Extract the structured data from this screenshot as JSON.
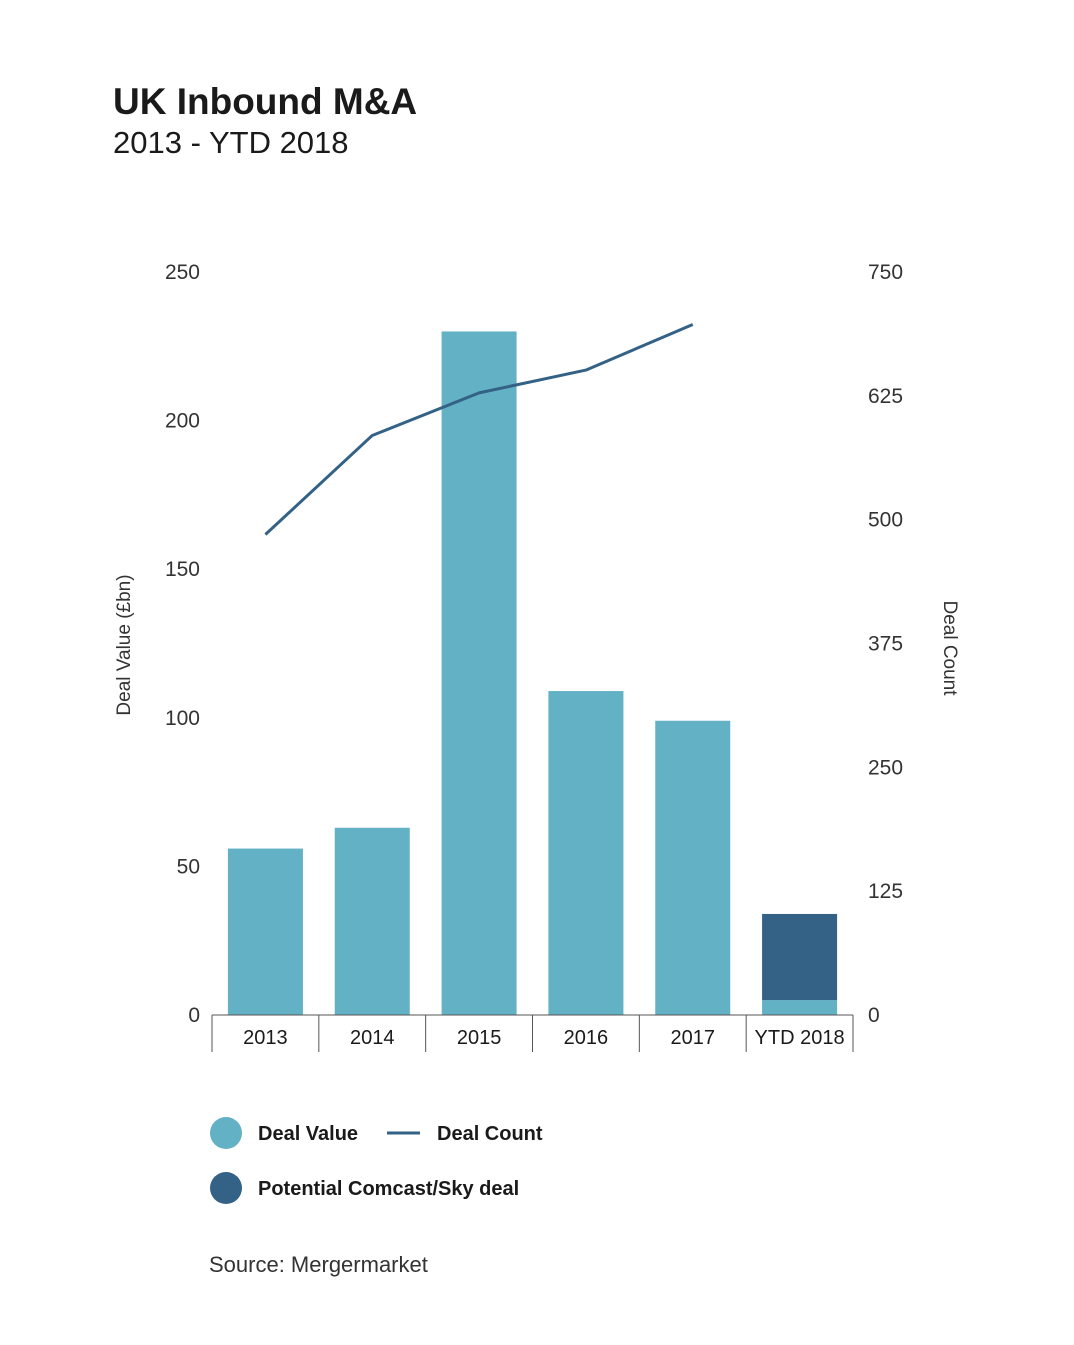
{
  "chart_data": {
    "type": "bar",
    "title": "UK Inbound M&A",
    "subtitle": "2013 - YTD 2018",
    "categories": [
      "2013",
      "2014",
      "2015",
      "2016",
      "2017",
      "YTD 2018"
    ],
    "series": [
      {
        "name": "Deal Value",
        "type": "bar",
        "axis": "left",
        "color": "#62b1c5",
        "values": [
          56,
          63,
          230,
          109,
          99,
          5
        ]
      },
      {
        "name": "Potential Comcast/Sky deal",
        "type": "bar",
        "stacked_on": "Deal Value",
        "axis": "left",
        "color": "#336286",
        "values": [
          null,
          null,
          null,
          null,
          null,
          29
        ]
      },
      {
        "name": "Deal Count",
        "type": "line",
        "axis": "right",
        "color": "#336286",
        "values": [
          485,
          585,
          628,
          651,
          697,
          null
        ]
      }
    ],
    "ylabel": "Deal Value (£bn)",
    "ylim": [
      0,
      250
    ],
    "yticks": [
      "0",
      "50",
      "100",
      "150",
      "200",
      "250"
    ],
    "y2label": "Deal Count",
    "y2lim": [
      0,
      750
    ],
    "y2ticks": [
      "0",
      "125",
      "250",
      "375",
      "500",
      "625",
      "750"
    ],
    "grid": false,
    "legend": {
      "position": "bottom-left",
      "items": [
        {
          "label": "Deal Value",
          "symbol": "circle",
          "color": "#62b1c5"
        },
        {
          "label": "Deal Count",
          "symbol": "line",
          "color": "#336286"
        },
        {
          "label": "Potential Comcast/Sky deal",
          "symbol": "circle",
          "color": "#336286"
        }
      ]
    },
    "source": "Source: Mergermarket"
  }
}
